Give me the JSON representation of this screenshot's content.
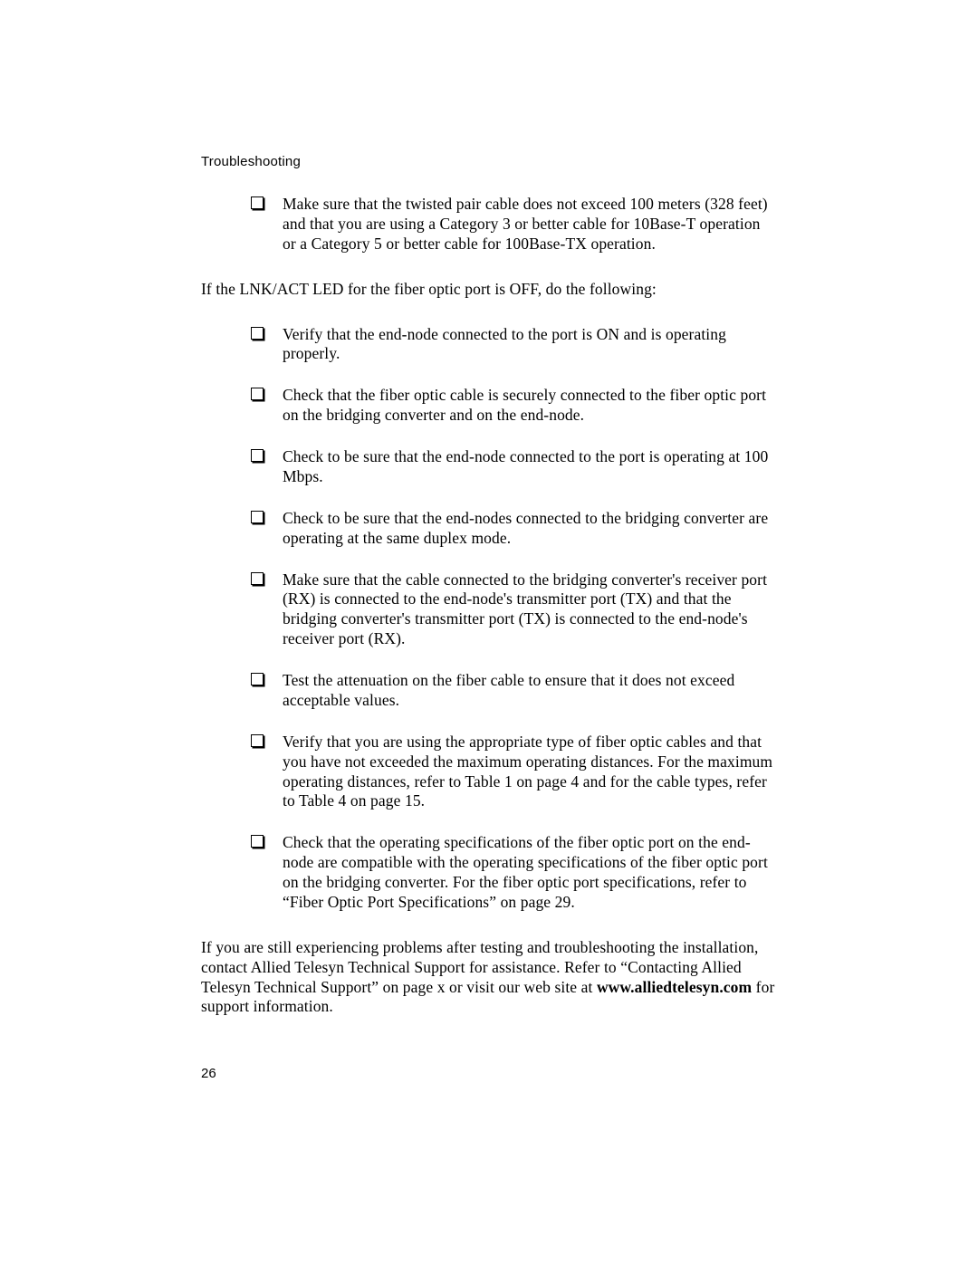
{
  "header": "Troubleshooting",
  "list1": [
    "Make sure that the twisted pair cable does not exceed 100 meters (328 feet) and that you are using a Category 3 or better cable for 10Base-T operation or a Category 5 or better cable for 100Base-TX operation."
  ],
  "mid_para": "If the LNK/ACT LED for the fiber optic port is OFF, do the following:",
  "list2": [
    "Verify that the end-node connected to the port is ON and is operating properly.",
    "Check that the fiber optic cable is securely connected to the fiber optic port on the bridging converter and on the end-node.",
    "Check to be sure that the end-node connected to the port is operating at 100 Mbps.",
    "Check to be sure that the end-nodes connected to the bridging converter are operating at the same duplex mode.",
    "Make sure that the cable connected to the bridging converter's receiver port (RX) is connected to the end-node's transmitter port (TX) and that the bridging converter's transmitter port (TX) is connected to the end-node's receiver port (RX).",
    "Test the attenuation on the fiber cable to ensure that it does not exceed acceptable values.",
    "Verify that you are using the appropriate type of fiber optic cables and that you have not exceeded the maximum operating distances. For the maximum operating distances, refer to Table 1 on page 4 and for the cable types, refer to Table 4 on page 15.",
    "Check that the operating specifications of the fiber optic port on the end-node are compatible with the operating specifications of the fiber optic port on the bridging converter. For the fiber optic port specifications, refer to “Fiber Optic Port Specifications” on page 29."
  ],
  "closing_pre": "If you are still experiencing problems after testing and troubleshooting the installation, contact Allied Telesyn Technical Support for assistance. Refer to “Contacting Allied Telesyn Technical Support” on page x or visit our web site at ",
  "closing_url": "www.alliedtelesyn.com",
  "closing_post": " for support information.",
  "page_number": "26"
}
